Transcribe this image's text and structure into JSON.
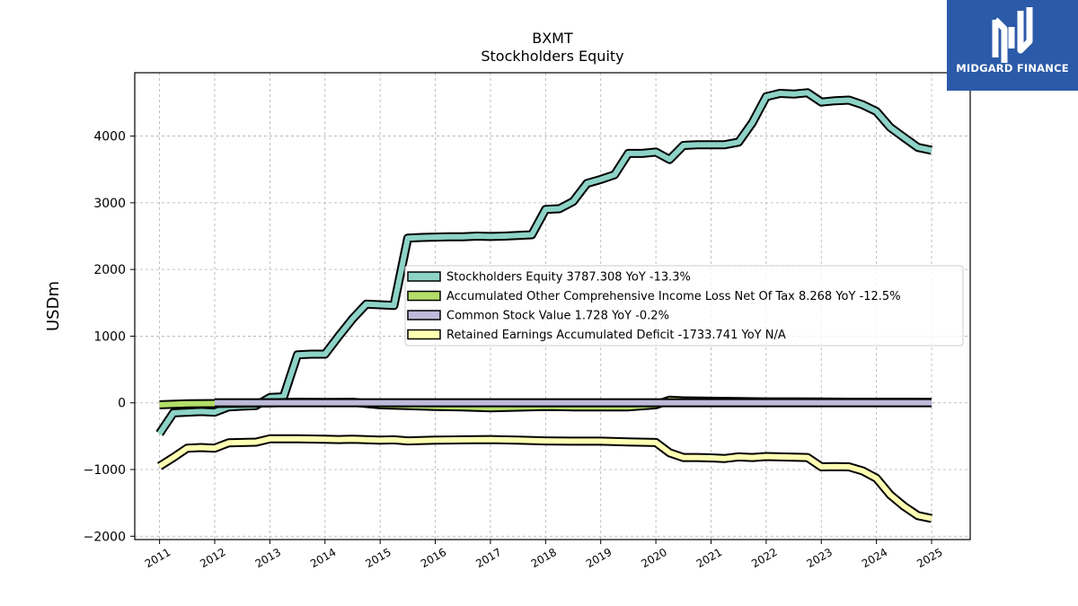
{
  "branding": {
    "name": "MIDGARD FINANCE",
    "background": "#2b5aa8"
  },
  "chart_data": {
    "type": "line",
    "title": "BXMT",
    "subtitle": "Stockholders  Equity",
    "xlabel": "",
    "ylabel": "USDm",
    "xlim": [
      2010.55,
      2025.7
    ],
    "ylim": [
      -2050,
      4950
    ],
    "xticks": [
      2011,
      2012,
      2013,
      2014,
      2015,
      2016,
      2017,
      2018,
      2019,
      2020,
      2021,
      2022,
      2023,
      2024,
      2025
    ],
    "xtick_labels": [
      "2011",
      "2012",
      "2013",
      "2014",
      "2015",
      "2016",
      "2017",
      "2018",
      "2019",
      "2020",
      "2021",
      "2022",
      "2023",
      "2024",
      "2025"
    ],
    "yticks": [
      -2000,
      -1000,
      0,
      1000,
      2000,
      3000,
      4000
    ],
    "ytick_labels": [
      "−2000",
      "−1000",
      "0",
      "1000",
      "2000",
      "3000",
      "4000"
    ],
    "grid": true,
    "legend_position": "center-right",
    "series": [
      {
        "name": "Stockholders Equity  3787.308 YoY -13.3%",
        "color": "#8dd3c7",
        "x": [
          2011.0,
          2011.25,
          2011.5,
          2011.75,
          2012.0,
          2012.25,
          2012.5,
          2012.75,
          2013.0,
          2013.25,
          2013.5,
          2013.75,
          2014.0,
          2014.25,
          2014.5,
          2014.75,
          2015.0,
          2015.25,
          2015.5,
          2015.75,
          2016.0,
          2016.25,
          2016.5,
          2016.75,
          2017.0,
          2017.25,
          2017.5,
          2017.75,
          2018.0,
          2018.25,
          2018.5,
          2018.75,
          2019.0,
          2019.25,
          2019.5,
          2019.75,
          2020.0,
          2020.25,
          2020.5,
          2020.75,
          2021.0,
          2021.25,
          2021.5,
          2021.75,
          2022.0,
          2022.25,
          2022.5,
          2022.75,
          2023.0,
          2023.25,
          2023.5,
          2023.75,
          2024.0,
          2024.25,
          2024.5,
          2024.75,
          2025.0
        ],
        "y": [
          -460,
          -150,
          -140,
          -130,
          -140,
          -60,
          -50,
          -40,
          80,
          90,
          720,
          730,
          730,
          1000,
          1260,
          1480,
          1470,
          1460,
          2470,
          2480,
          2485,
          2490,
          2490,
          2500,
          2495,
          2500,
          2510,
          2520,
          2900,
          2910,
          3020,
          3290,
          3350,
          3420,
          3740,
          3740,
          3760,
          3650,
          3860,
          3870,
          3870,
          3870,
          3910,
          4200,
          4590,
          4640,
          4630,
          4650,
          4510,
          4530,
          4540,
          4470,
          4370,
          4130,
          3980,
          3830,
          3787
        ]
      },
      {
        "name": "Accumulated Other Comprehensive Income Loss Net Of Tax  8.268 YoY -12.5%",
        "color": "#b3de69",
        "x": [
          2011.0,
          2011.5,
          2012.0,
          2012.5,
          2013.0,
          2013.5,
          2014.0,
          2014.5,
          2015.0,
          2015.5,
          2016.0,
          2016.5,
          2017.0,
          2017.5,
          2018.0,
          2018.5,
          2019.0,
          2019.5,
          2020.0,
          2020.25,
          2020.5,
          2021.0,
          2021.5,
          2022.0,
          2022.5,
          2023.0,
          2023.5,
          2024.0,
          2024.5,
          2025.0
        ],
        "y": [
          -30,
          -15,
          -10,
          -5,
          0,
          10,
          5,
          10,
          -30,
          -40,
          -55,
          -60,
          -75,
          -65,
          -55,
          -60,
          -60,
          -60,
          -30,
          40,
          30,
          25,
          20,
          15,
          15,
          12,
          10,
          10,
          9,
          8
        ]
      },
      {
        "name": "Common Stock Value  1.728 YoY -0.2%",
        "color": "#bebada",
        "x": [
          2012.0,
          2025.0
        ],
        "y": [
          1.7,
          1.728
        ]
      },
      {
        "name": "Retained Earnings Accumulated Deficit  -1733.741 YoY N/A",
        "color": "#ffffb3",
        "x": [
          2011.0,
          2011.25,
          2011.5,
          2011.75,
          2012.0,
          2012.25,
          2012.5,
          2012.75,
          2013.0,
          2013.5,
          2014.0,
          2014.25,
          2014.5,
          2015.0,
          2015.25,
          2015.5,
          2016.0,
          2016.5,
          2017.0,
          2017.5,
          2018.0,
          2018.5,
          2019.0,
          2019.5,
          2020.0,
          2020.25,
          2020.5,
          2020.75,
          2021.0,
          2021.25,
          2021.5,
          2021.75,
          2022.0,
          2022.25,
          2022.5,
          2022.75,
          2023.0,
          2023.25,
          2023.5,
          2023.75,
          2024.0,
          2024.25,
          2024.5,
          2024.75,
          2025.0
        ],
        "y": [
          -950,
          -820,
          -680,
          -670,
          -680,
          -600,
          -595,
          -590,
          -540,
          -540,
          -545,
          -550,
          -545,
          -560,
          -555,
          -570,
          -560,
          -555,
          -550,
          -560,
          -570,
          -575,
          -575,
          -585,
          -595,
          -750,
          -820,
          -820,
          -825,
          -835,
          -810,
          -820,
          -805,
          -810,
          -815,
          -820,
          -960,
          -955,
          -960,
          -1020,
          -1130,
          -1380,
          -1550,
          -1690,
          -1734
        ]
      }
    ]
  }
}
